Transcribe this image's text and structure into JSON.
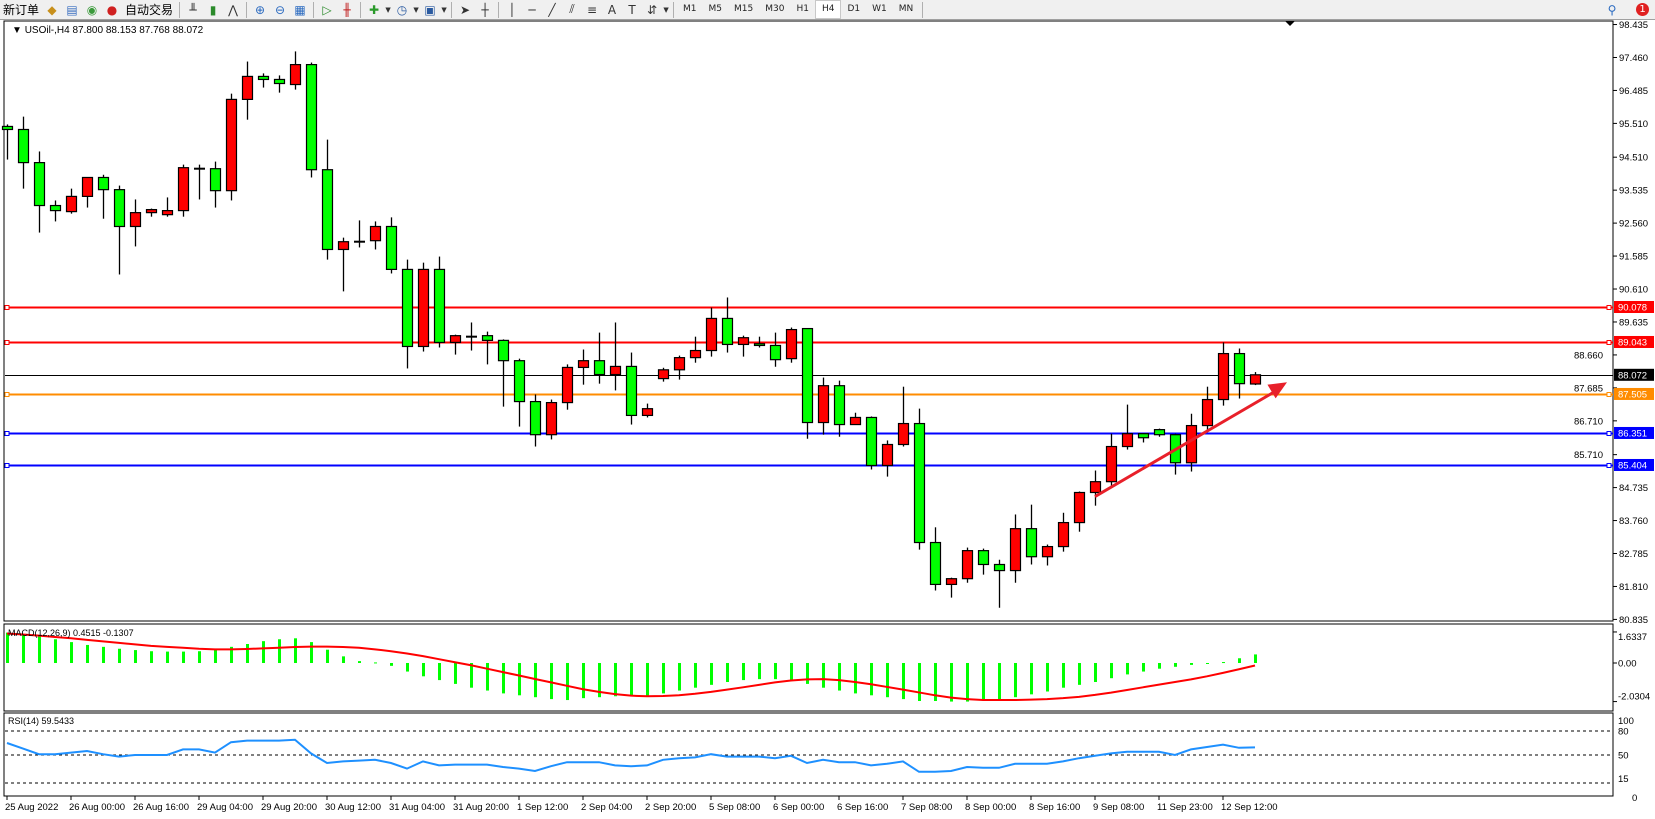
{
  "toolbar": {
    "new_order": "新订单",
    "auto_trading": "自动交易",
    "icons": [
      "market-watch-icon",
      "navigator-icon",
      "signals-icon",
      "auto-trading-icon",
      "bar-chart-icon",
      "candlestick-icon",
      "line-chart-icon",
      "zoom-in-icon",
      "zoom-out-icon",
      "tile-windows-icon",
      "autoscroll-icon",
      "chart-shift-icon",
      "indicators-icon",
      "periods-icon",
      "templates-icon",
      "cursor-icon",
      "crosshair-icon",
      "vertical-line-icon",
      "horizontal-line-icon",
      "trendline-icon",
      "fibonacci-fan-icon",
      "fibonacci-retracement-icon",
      "text-icon",
      "text-label-icon",
      "arrows-icon"
    ],
    "periods": [
      "M1",
      "M5",
      "M15",
      "M30",
      "H1",
      "H4",
      "D1",
      "W1",
      "MN"
    ],
    "active_period": "H4",
    "notification_count": "1"
  },
  "chart_header": "USOil-,H4  87.800 88.153 87.768 88.072",
  "colors": {
    "bull": "#ff0000",
    "bear": "#00ff00",
    "resistance": "#ff0000",
    "pivot": "#ff8c00",
    "support": "#0000ff",
    "macd_hist": "#00ff00",
    "macd_signal": "#ff0000",
    "rsi": "#1e90ff"
  },
  "chart_data": [
    {
      "type": "candlestick",
      "symbol": "USOil-",
      "timeframe": "H4",
      "ylim": [
        80.835,
        98.435
      ],
      "y_ticks": [
        "98.435",
        "97.460",
        "96.485",
        "95.510",
        "94.510",
        "93.535",
        "92.560",
        "91.585",
        "90.610",
        "89.635",
        "88.660",
        "87.685",
        "86.710",
        "85.710",
        "84.735",
        "83.760",
        "82.785",
        "81.810",
        "80.835"
      ],
      "x_ticks": [
        {
          "candle": 0,
          "label": "25 Aug 2022"
        },
        {
          "candle": 4,
          "label": "26 Aug 00:00"
        },
        {
          "candle": 8,
          "label": "26 Aug 16:00"
        },
        {
          "candle": 12,
          "label": "29 Aug 04:00"
        },
        {
          "candle": 16,
          "label": "29 Aug 20:00"
        },
        {
          "candle": 20,
          "label": "30 Aug 12:00"
        },
        {
          "candle": 24,
          "label": "31 Aug 04:00"
        },
        {
          "candle": 28,
          "label": "31 Aug 20:00"
        },
        {
          "candle": 32,
          "label": "1 Sep 12:00"
        },
        {
          "candle": 36,
          "label": "2 Sep 04:00"
        },
        {
          "candle": 40,
          "label": "2 Sep 20:00"
        },
        {
          "candle": 44,
          "label": "5 Sep 08:00"
        },
        {
          "candle": 48,
          "label": "6 Sep 00:00"
        },
        {
          "candle": 52,
          "label": "6 Sep 16:00"
        },
        {
          "candle": 56,
          "label": "7 Sep 08:00"
        },
        {
          "candle": 60,
          "label": "8 Sep 00:00"
        },
        {
          "candle": 64,
          "label": "8 Sep 16:00"
        },
        {
          "candle": 68,
          "label": "9 Sep 08:00"
        },
        {
          "candle": 72,
          "label": "11 Sep 23:00"
        },
        {
          "candle": 76,
          "label": "12 Sep 12:00"
        }
      ],
      "ohlc": [
        [
          95.42,
          95.48,
          94.44,
          95.33
        ],
        [
          95.33,
          95.71,
          93.58,
          94.35
        ],
        [
          94.35,
          94.68,
          92.28,
          93.08
        ],
        [
          93.08,
          93.23,
          92.61,
          92.93
        ],
        [
          92.9,
          93.58,
          92.84,
          93.35
        ],
        [
          93.35,
          93.91,
          93.02,
          93.91
        ],
        [
          93.91,
          93.99,
          92.69,
          93.55
        ],
        [
          93.55,
          93.67,
          91.04,
          92.46
        ],
        [
          92.46,
          93.26,
          91.87,
          92.87
        ],
        [
          92.87,
          92.99,
          92.75,
          92.96
        ],
        [
          92.81,
          93.32,
          92.75,
          92.93
        ],
        [
          92.93,
          94.29,
          92.75,
          94.2
        ],
        [
          94.17,
          94.29,
          93.26,
          94.17
        ],
        [
          94.17,
          94.38,
          93.02,
          93.52
        ],
        [
          93.52,
          96.39,
          93.23,
          96.22
        ],
        [
          96.22,
          97.34,
          95.62,
          96.9
        ],
        [
          96.9,
          96.99,
          96.57,
          96.81
        ],
        [
          96.81,
          96.93,
          96.42,
          96.69
        ],
        [
          96.66,
          97.64,
          96.51,
          97.25
        ],
        [
          97.25,
          97.31,
          93.91,
          94.14
        ],
        [
          94.14,
          95.03,
          91.48,
          91.78
        ],
        [
          91.78,
          92.13,
          90.54,
          92.01
        ],
        [
          92.01,
          92.64,
          91.84,
          92.01
        ],
        [
          92.04,
          92.61,
          91.78,
          92.46
        ],
        [
          92.46,
          92.73,
          91.07,
          91.19
        ],
        [
          91.19,
          91.48,
          88.26,
          88.91
        ],
        [
          88.91,
          91.39,
          88.76,
          91.19
        ],
        [
          91.19,
          91.57,
          88.88,
          89.03
        ],
        [
          89.03,
          89.26,
          88.67,
          89.23
        ],
        [
          89.2,
          89.62,
          88.79,
          89.2
        ],
        [
          89.23,
          89.35,
          88.38,
          89.09
        ],
        [
          89.09,
          89.12,
          87.13,
          88.49
        ],
        [
          88.49,
          88.55,
          86.54,
          87.28
        ],
        [
          87.28,
          87.49,
          85.95,
          86.3
        ],
        [
          86.3,
          87.34,
          86.16,
          87.25
        ],
        [
          87.25,
          88.38,
          87.04,
          88.29
        ],
        [
          88.29,
          88.82,
          87.78,
          88.49
        ],
        [
          88.49,
          89.32,
          87.81,
          88.08
        ],
        [
          88.08,
          89.62,
          87.61,
          88.32
        ],
        [
          88.32,
          88.73,
          86.6,
          86.87
        ],
        [
          86.87,
          87.22,
          86.81,
          87.07
        ],
        [
          87.96,
          88.28,
          87.87,
          88.22
        ],
        [
          88.22,
          88.64,
          87.93,
          88.58
        ],
        [
          88.58,
          89.2,
          88.43,
          88.79
        ],
        [
          88.79,
          90.06,
          88.61,
          89.74
        ],
        [
          89.74,
          90.36,
          88.73,
          88.97
        ],
        [
          88.97,
          89.23,
          88.61,
          89.17
        ],
        [
          88.99,
          89.2,
          88.88,
          88.94
        ],
        [
          88.94,
          89.32,
          88.31,
          88.52
        ],
        [
          88.55,
          89.47,
          88.43,
          89.41
        ],
        [
          89.44,
          89.44,
          86.18,
          86.66
        ],
        [
          86.66,
          87.99,
          86.3,
          87.75
        ],
        [
          87.75,
          87.9,
          86.24,
          86.6
        ],
        [
          86.6,
          86.95,
          86.6,
          86.81
        ],
        [
          86.81,
          86.84,
          85.27,
          85.39
        ],
        [
          85.39,
          86.13,
          85.06,
          86.01
        ],
        [
          86.01,
          87.72,
          85.95,
          86.63
        ],
        [
          86.63,
          87.07,
          82.9,
          83.11
        ],
        [
          83.11,
          83.56,
          81.69,
          81.87
        ],
        [
          81.87,
          82.07,
          81.48,
          82.04
        ],
        [
          82.04,
          82.96,
          81.92,
          82.87
        ],
        [
          82.87,
          82.93,
          82.16,
          82.46
        ],
        [
          82.46,
          82.6,
          81.18,
          82.28
        ],
        [
          82.28,
          83.94,
          81.92,
          83.52
        ],
        [
          83.52,
          84.23,
          82.46,
          82.69
        ],
        [
          82.69,
          83.05,
          82.43,
          82.99
        ],
        [
          82.99,
          83.99,
          82.84,
          83.7
        ],
        [
          83.7,
          84.62,
          83.43,
          84.59
        ],
        [
          84.59,
          85.24,
          84.2,
          84.91
        ],
        [
          84.91,
          86.33,
          84.77,
          85.95
        ],
        [
          85.95,
          87.19,
          85.86,
          86.33
        ],
        [
          86.33,
          86.33,
          86.07,
          86.21
        ],
        [
          86.45,
          86.48,
          86.24,
          86.3
        ],
        [
          86.3,
          86.33,
          85.12,
          85.47
        ],
        [
          85.47,
          86.92,
          85.21,
          86.57
        ],
        [
          86.57,
          87.72,
          86.39,
          87.34
        ],
        [
          87.34,
          89.03,
          87.16,
          88.7
        ],
        [
          88.7,
          88.85,
          87.37,
          87.81
        ],
        [
          87.8,
          88.153,
          87.768,
          88.072
        ]
      ],
      "current_price": {
        "value": 88.072,
        "label": "88.072"
      },
      "horizontal_lines": [
        {
          "value": 90.078,
          "label": "90.078",
          "color": "#ff0000"
        },
        {
          "value": 89.043,
          "label": "89.043",
          "color": "#ff0000"
        },
        {
          "value": 87.505,
          "label": "87.505",
          "color": "#ff8c00"
        },
        {
          "value": 86.351,
          "label": "86.351",
          "color": "#0000ff"
        },
        {
          "value": 85.404,
          "label": "85.404",
          "color": "#0000ff"
        }
      ],
      "annotation": {
        "type": "arrow",
        "color": "#e8202a",
        "from": {
          "candle": 68,
          "price": 84.47
        },
        "to": {
          "candle": 80,
          "price": 87.85
        }
      }
    },
    {
      "type": "bar",
      "title": "MACD(12,26,9) 0.4515 -0.1307",
      "ylim": [
        -2.0304,
        1.6337
      ],
      "y_ticks": [
        "1.6337",
        "0.00",
        "-2.0304"
      ],
      "histogram": [
        1.6,
        1.5,
        1.4,
        1.25,
        1.1,
        0.95,
        0.85,
        0.75,
        0.68,
        0.62,
        0.6,
        0.6,
        0.62,
        0.7,
        0.85,
        1.0,
        1.15,
        1.25,
        1.3,
        1.1,
        0.7,
        0.35,
        0.1,
        0.03,
        -0.15,
        -0.45,
        -0.7,
        -0.9,
        -1.1,
        -1.3,
        -1.45,
        -1.6,
        -1.7,
        -1.8,
        -1.9,
        -1.95,
        -1.85,
        -1.8,
        -1.75,
        -1.7,
        -1.75,
        -1.6,
        -1.45,
        -1.3,
        -1.15,
        -1.0,
        -0.9,
        -0.85,
        -0.85,
        -0.9,
        -1.1,
        -1.3,
        -1.45,
        -1.6,
        -1.7,
        -1.8,
        -1.9,
        -2.0,
        -2.0,
        -2.03,
        -2.03,
        -1.95,
        -1.9,
        -1.8,
        -1.65,
        -1.5,
        -1.3,
        -1.15,
        -1.0,
        -0.8,
        -0.6,
        -0.45,
        -0.3,
        -0.2,
        -0.1,
        -0.05,
        0.05,
        0.25,
        0.4515
      ],
      "signal": [
        1.55,
        1.5,
        1.44,
        1.37,
        1.3,
        1.22,
        1.14,
        1.06,
        0.98,
        0.9,
        0.85,
        0.8,
        0.75,
        0.72,
        0.72,
        0.74,
        0.77,
        0.8,
        0.84,
        0.86,
        0.86,
        0.84,
        0.8,
        0.72,
        0.62,
        0.5,
        0.36,
        0.2,
        0.04,
        -0.12,
        -0.3,
        -0.48,
        -0.66,
        -0.84,
        -1.02,
        -1.2,
        -1.38,
        -1.52,
        -1.64,
        -1.72,
        -1.75,
        -1.74,
        -1.7,
        -1.62,
        -1.52,
        -1.4,
        -1.28,
        -1.15,
        -1.02,
        -0.92,
        -0.86,
        -0.85,
        -0.9,
        -1.0,
        -1.12,
        -1.26,
        -1.4,
        -1.55,
        -1.7,
        -1.82,
        -1.9,
        -1.95,
        -1.95,
        -1.95,
        -1.93,
        -1.9,
        -1.85,
        -1.78,
        -1.68,
        -1.56,
        -1.42,
        -1.28,
        -1.14,
        -1.0,
        -0.86,
        -0.7,
        -0.52,
        -0.33,
        -0.1307
      ]
    },
    {
      "type": "line",
      "title": "RSI(14) 59.5433",
      "ylim": [
        0,
        100
      ],
      "y_ticks": [
        "100",
        "80",
        "50",
        "15",
        "0"
      ],
      "levels": [
        80,
        50,
        15
      ],
      "values": [
        65,
        58,
        51,
        51,
        53,
        55,
        51,
        48,
        50,
        50,
        50,
        57,
        57,
        53,
        66,
        68,
        68,
        68,
        69,
        52,
        40,
        42,
        43,
        44,
        40,
        33,
        42,
        37,
        38,
        38,
        38,
        35,
        33,
        30,
        36,
        41,
        41,
        41,
        37,
        36,
        37,
        44,
        46,
        47,
        51,
        48,
        48,
        48,
        46,
        49,
        40,
        44,
        41,
        41,
        37,
        39,
        42,
        29,
        29,
        30,
        35,
        34,
        34,
        39,
        39,
        39,
        42,
        46,
        49,
        52,
        54,
        54,
        54,
        50,
        57,
        60,
        63,
        59,
        59.5433
      ]
    }
  ]
}
